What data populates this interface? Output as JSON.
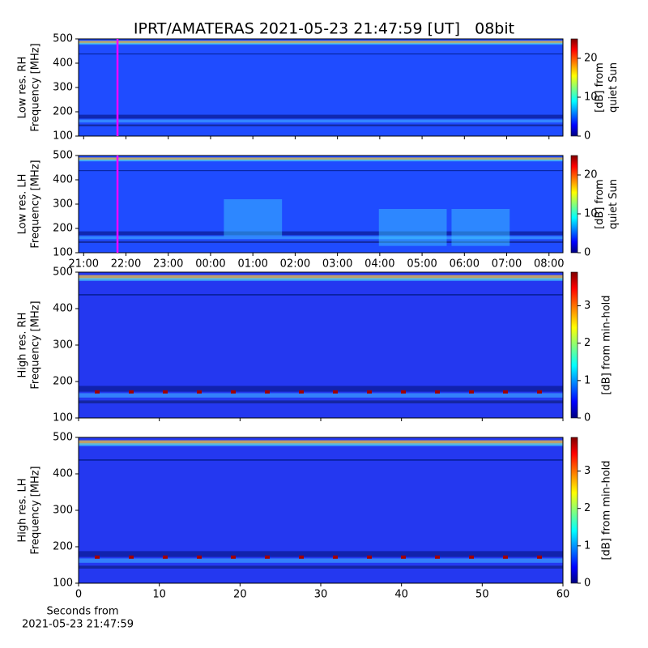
{
  "chart_data": [
    {
      "type": "spectrogram",
      "title": "IPRT/AMATERAS 2021-05-23 21:47:59 [UT]   08bit",
      "ylabel": [
        "Low res. RH",
        "Frequency [MHz]"
      ],
      "ylim": [
        100,
        500
      ],
      "yticks": [
        100,
        200,
        300,
        400,
        500
      ],
      "xlim": [
        20.88,
        32.33
      ],
      "colormap": "jet",
      "clim": [
        0,
        25
      ],
      "cticks": [
        0,
        10,
        20
      ],
      "colorbar_label": [
        "[dB] from",
        "quiet Sun"
      ],
      "marker_x": 21.8,
      "marker_color": "#ff00ff"
    },
    {
      "type": "spectrogram",
      "ylabel": [
        "Low res. LH",
        "Frequency [MHz]"
      ],
      "ylim": [
        100,
        500
      ],
      "yticks": [
        100,
        200,
        300,
        400,
        500
      ],
      "xlim": [
        20.88,
        32.33
      ],
      "xticks": [
        {
          "value": 21,
          "label": "21:00"
        },
        {
          "value": 22,
          "label": "22:00"
        },
        {
          "value": 23,
          "label": "23:00"
        },
        {
          "value": 24,
          "label": "00:00"
        },
        {
          "value": 25,
          "label": "01:00"
        },
        {
          "value": 26,
          "label": "02:00"
        },
        {
          "value": 27,
          "label": "03:00"
        },
        {
          "value": 28,
          "label": "04:00"
        },
        {
          "value": 29,
          "label": "05:00"
        },
        {
          "value": 30,
          "label": "06:00"
        },
        {
          "value": 31,
          "label": "07:00"
        },
        {
          "value": 32,
          "label": "08:00"
        }
      ],
      "colormap": "jet",
      "clim": [
        0,
        25
      ],
      "cticks": [
        0,
        10,
        20
      ],
      "colorbar_label": [
        "[dB] from",
        "quiet Sun"
      ],
      "marker_x": 21.8,
      "marker_color": "#ff00ff"
    },
    {
      "type": "spectrogram",
      "ylabel": [
        "High res. RH",
        "Frequency [MHz]"
      ],
      "ylim": [
        100,
        500
      ],
      "yticks": [
        100,
        200,
        300,
        400,
        500
      ],
      "xlim": [
        0,
        60
      ],
      "colormap": "jet",
      "clim": [
        0,
        3.9
      ],
      "cticks": [
        0,
        1,
        2,
        3
      ],
      "colorbar_label": [
        "[dB] from min-hold"
      ]
    },
    {
      "type": "spectrogram",
      "ylabel": [
        "High res. LH",
        "Frequency [MHz]"
      ],
      "ylim": [
        100,
        500
      ],
      "yticks": [
        100,
        200,
        300,
        400,
        500
      ],
      "xlim": [
        0,
        60
      ],
      "xticks": [
        0,
        10,
        20,
        30,
        40,
        50,
        60
      ],
      "xlabel": [
        "Seconds from",
        "2021-05-23 21:47:59"
      ],
      "colormap": "jet",
      "clim": [
        0,
        3.9
      ],
      "cticks": [
        0,
        1,
        2,
        3
      ],
      "colorbar_label": [
        "[dB] from min-hold"
      ]
    }
  ]
}
